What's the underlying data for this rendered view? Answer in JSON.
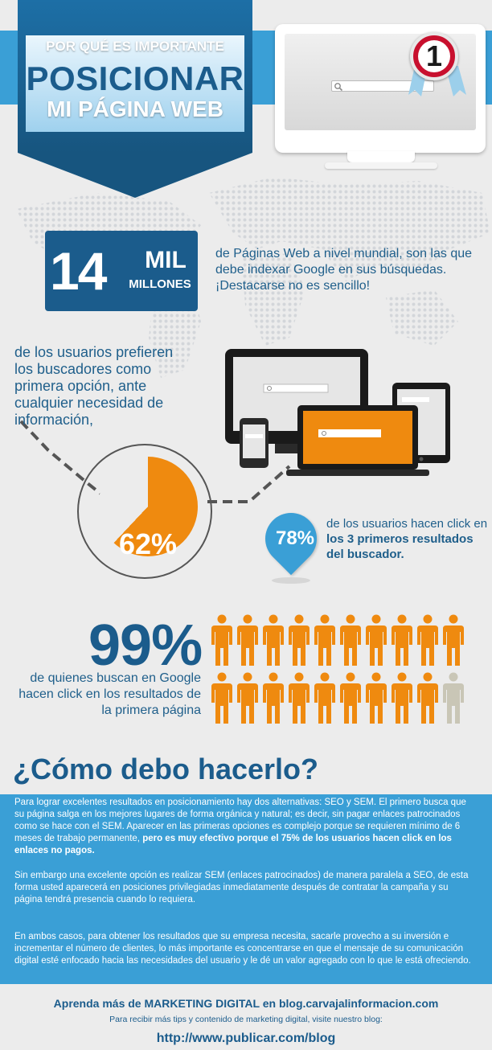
{
  "header": {
    "line1": "POR QUÉ ES IMPORTANTE",
    "line2": "POSICIONAR",
    "line3": "MI PÁGINA WEB",
    "rank_badge": "1",
    "icons": [
      "search-icon",
      "rank-ribbon-icon",
      "monitor-icon"
    ]
  },
  "stat14": {
    "number": "14",
    "unit_top": "MIL",
    "unit_bottom": "MILLONES",
    "text": "de Páginas Web a nivel mundial, son las que debe indexar Google en sus búsquedas. ¡Destacarse no es sencillo!"
  },
  "stat62": {
    "text": "de los usuarios prefieren los buscadores como primera opción, ante cualquier necesidad de información,",
    "value": "62%",
    "fraction": 0.62
  },
  "stat78": {
    "value": "78%",
    "text_plain": "de los usuarios hacen click en",
    "text_bold": "los 3 primeros resultados del buscador."
  },
  "stat99": {
    "value": "99%",
    "text": "de quienes buscan en Google hacen click en los resultados de la primera página",
    "people_total": 20,
    "people_highlighted": 19
  },
  "como": {
    "title": "¿Cómo debo hacerlo?",
    "p1_plain": "Para lograr excelentes resultados en posicionamiento hay dos alternativas: SEO y SEM. El primero busca que su página salga en los mejores lugares de forma orgánica y natural; es decir, sin pagar enlaces patrocinados como se hace con el SEM. Aparecer en las primeras opciones es complejo porque se requieren mínimo de 6 meses de trabajo permanente,",
    "p1_bold": "pero es muy efectivo porque el 75% de los usuarios hacen click en los enlaces no pagos.",
    "p2": "Sin embargo una excelente opción es realizar SEM (enlaces patrocinados) de manera paralela a SEO, de esta forma usted aparecerá en posiciones privilegiadas inmediatamente después de contratar la campaña y su página tendrá presencia cuando lo requiera.",
    "p3": "En ambos casos, para obtener los resultados que su empresa necesita, sacarle provecho a  su inversión e incrementar el número de clientes, lo más importante es concentrarse en que el mensaje de su comunicación digital esté enfocado hacia las necesidades del usuario y le dé un valor agregado con lo que le está ofreciendo."
  },
  "footer": {
    "line1": "Aprenda más de MARKETING DIGITAL en blog.carvajalinformacion.com",
    "line2": "Para recibir más tips y contenido de marketing digital, visite nuestro blog:",
    "link": "http://www.publicar.com/blog"
  },
  "colors": {
    "dark_blue": "#1b5c8c",
    "light_blue": "#3a9fd6",
    "orange": "#ef8a0f",
    "gray_person": "#c9c6b6",
    "background": "#ececec"
  }
}
